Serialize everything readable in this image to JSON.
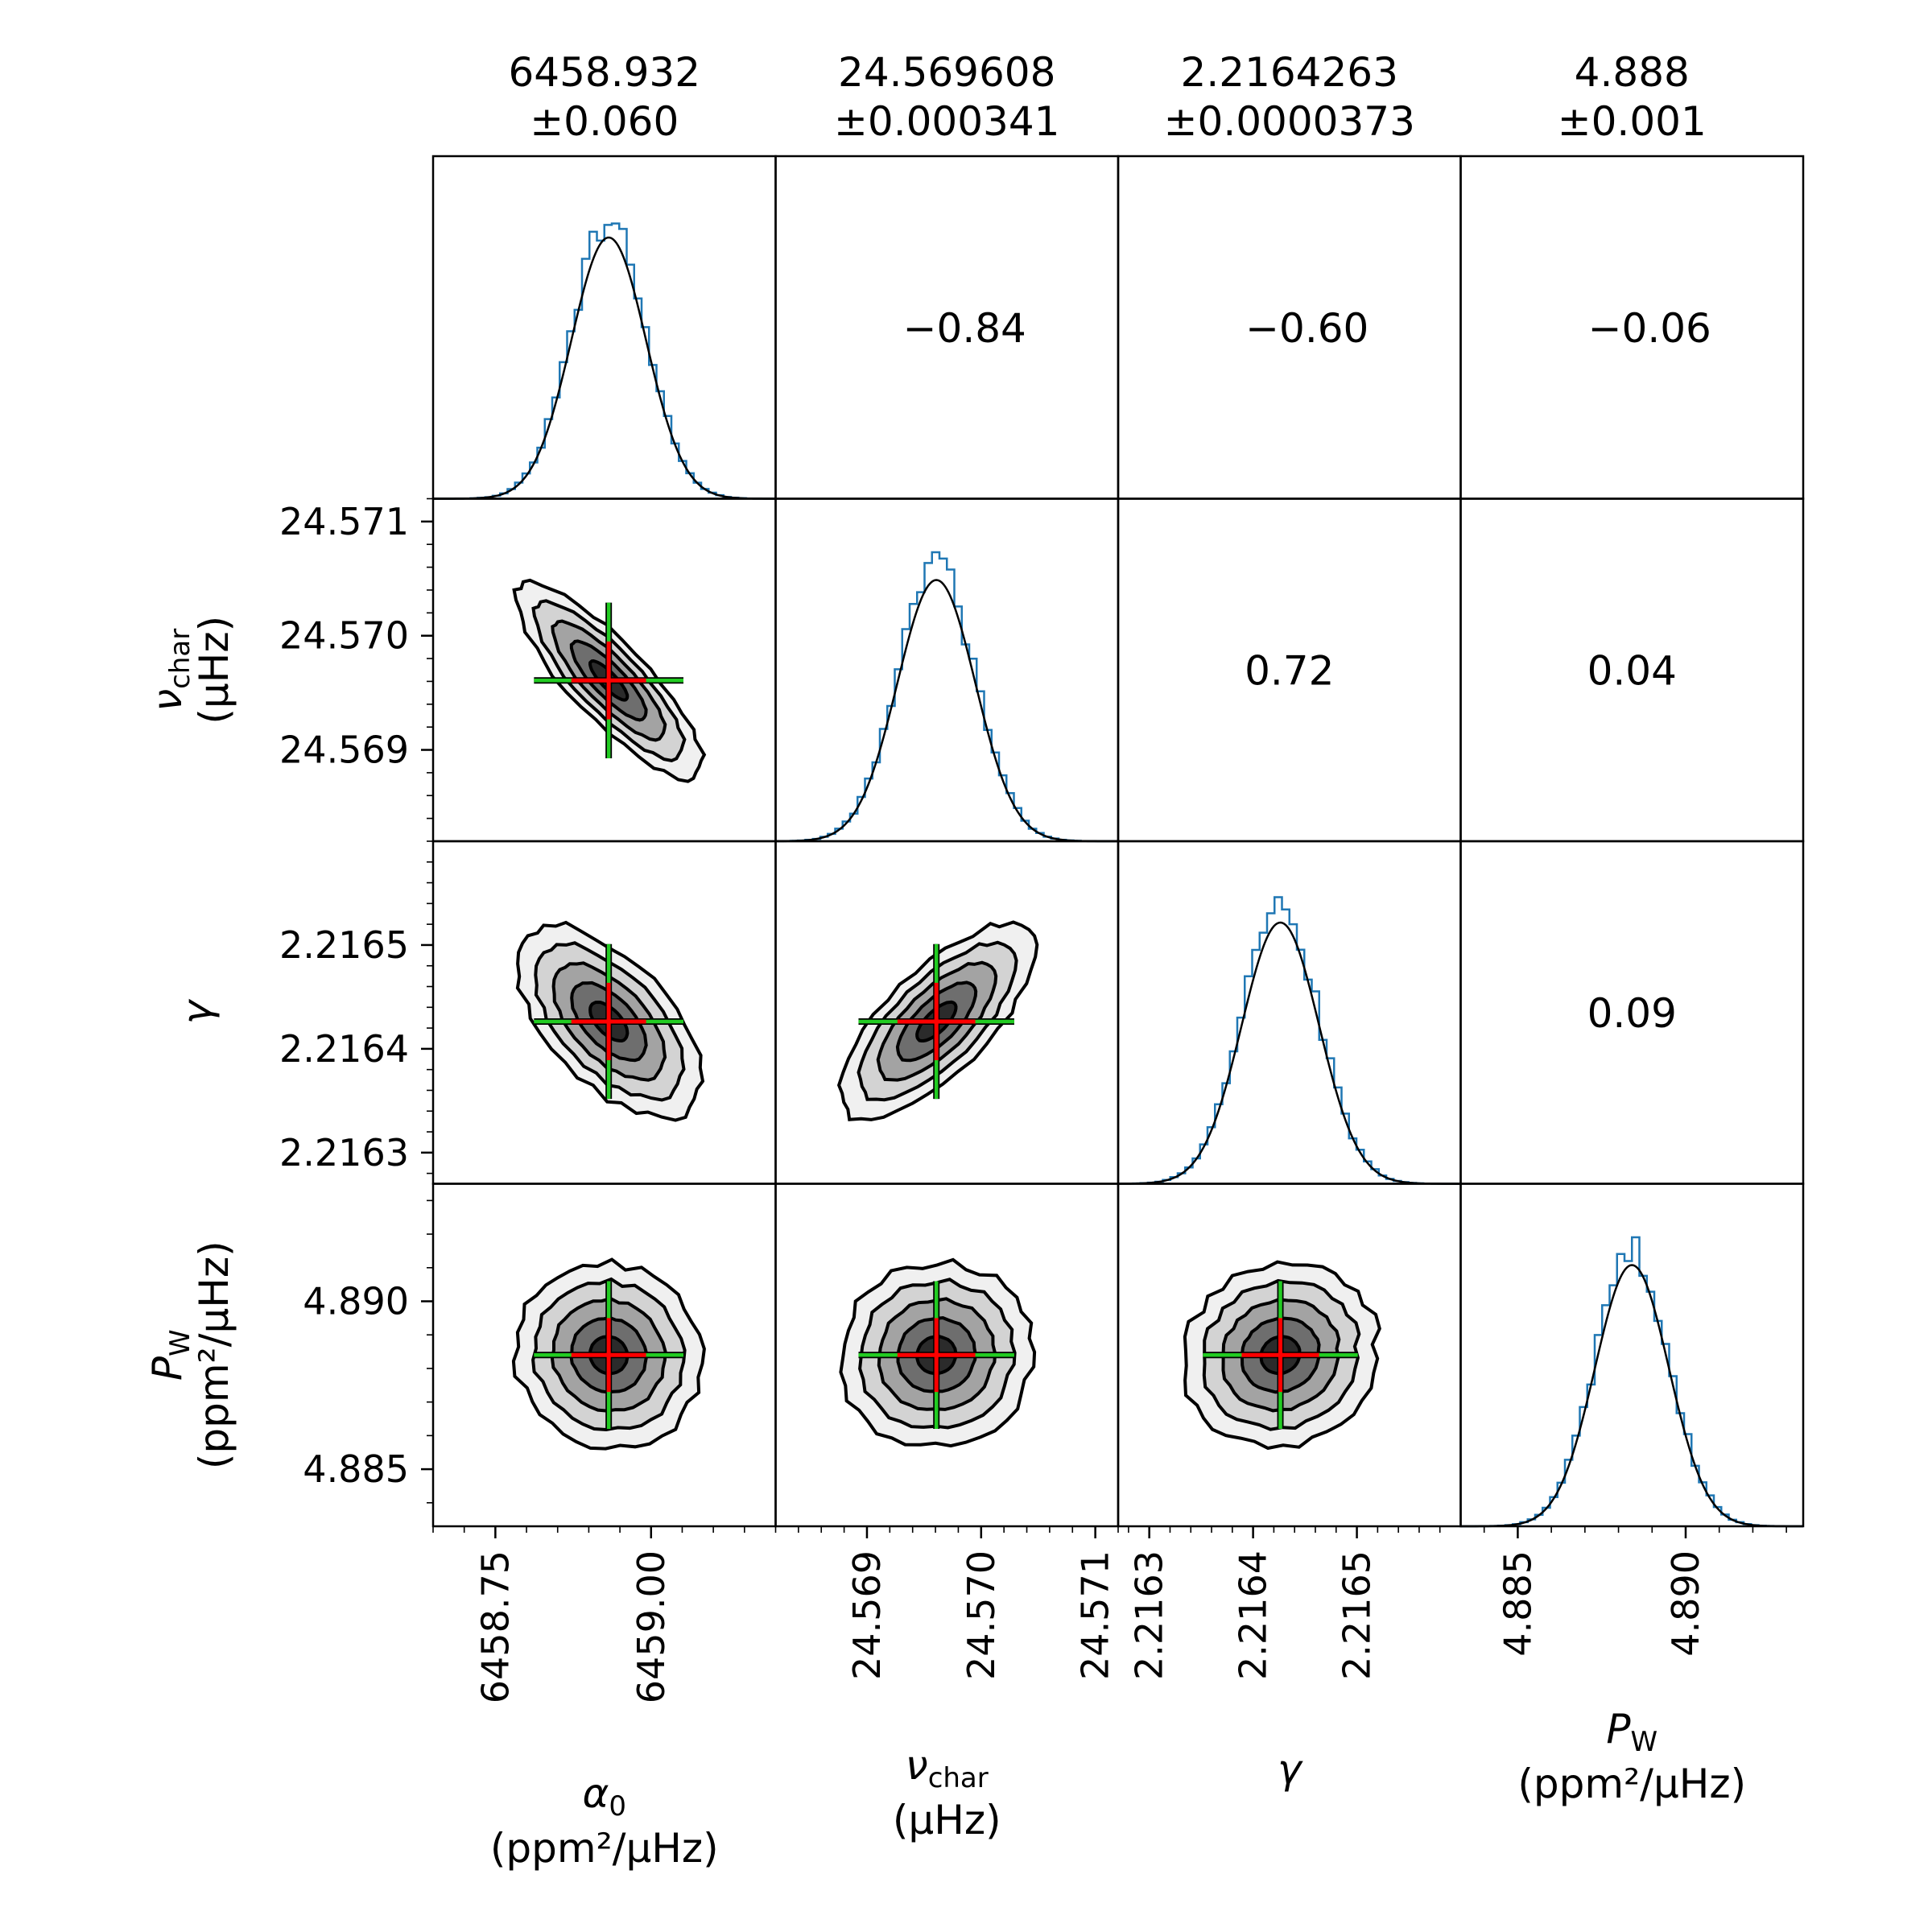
{
  "chart_data": {
    "type": "corner",
    "parameters": [
      {
        "name": "alpha0",
        "summary_value": "6458.932",
        "summary_error": "±0.060",
        "axis_label": "α0",
        "axis_unit": "(ppm²/μHz)",
        "range": [
          6458.65,
          6459.2
        ],
        "mean": 6458.932,
        "sigma": 0.06,
        "ticks": [
          6458.75,
          6459.0
        ],
        "tick_labels": [
          "6458.75",
          "6459.00"
        ],
        "minor_step": 0.05
      },
      {
        "name": "nu_char",
        "summary_value": "24.569608",
        "summary_error": "±0.000341",
        "axis_label": "νchar",
        "axis_unit": "(μHz)",
        "range": [
          24.5682,
          24.5712
        ],
        "mean": 24.569608,
        "sigma": 0.000341,
        "ticks": [
          24.569,
          24.57,
          24.571
        ],
        "tick_labels": [
          "24.569",
          "24.570",
          "24.571"
        ],
        "minor_step": 0.0002
      },
      {
        "name": "gamma",
        "summary_value": "2.2164263",
        "summary_error": "±0.0000373",
        "axis_label": "γ",
        "axis_unit": "",
        "range": [
          2.21627,
          2.2166
        ],
        "mean": 2.2164263,
        "sigma": 3.73e-05,
        "ticks": [
          2.2163,
          2.2164,
          2.2165
        ],
        "tick_labels": [
          "2.2163",
          "2.2164",
          "2.2165"
        ],
        "minor_step": 2e-05
      },
      {
        "name": "P_W",
        "summary_value": "4.888",
        "summary_error": "±0.001",
        "axis_label": "PW",
        "axis_unit": "(ppm²/μHz)",
        "range": [
          4.8833,
          4.8935
        ],
        "mean": 4.8884,
        "sigma": 0.0011,
        "ticks": [
          4.885,
          4.89
        ],
        "tick_labels": [
          "4.885",
          "4.890"
        ],
        "minor_step": 0.001
      }
    ],
    "correlations": [
      {
        "row": 0,
        "col": 1,
        "value": -0.84,
        "label": "−0.84"
      },
      {
        "row": 0,
        "col": 2,
        "value": -0.6,
        "label": "−0.60"
      },
      {
        "row": 0,
        "col": 3,
        "value": -0.06,
        "label": "−0.06"
      },
      {
        "row": 1,
        "col": 2,
        "value": 0.72,
        "label": "0.72"
      },
      {
        "row": 1,
        "col": 3,
        "value": 0.04,
        "label": "0.04"
      },
      {
        "row": 2,
        "col": 3,
        "value": 0.09,
        "label": "0.09"
      }
    ],
    "contour_levels_sigma": [
      0.5,
      1.0,
      1.5,
      2.0,
      2.5
    ],
    "contour_fills": [
      "#2b2b2b",
      "#6e6e6e",
      "#a3a3a3",
      "#d3d3d3",
      "#f0f0f0"
    ],
    "histogram_color": "#1f77b4",
    "marker_colors": {
      "inner": "#ff0000",
      "outer": "#22cc22"
    }
  }
}
